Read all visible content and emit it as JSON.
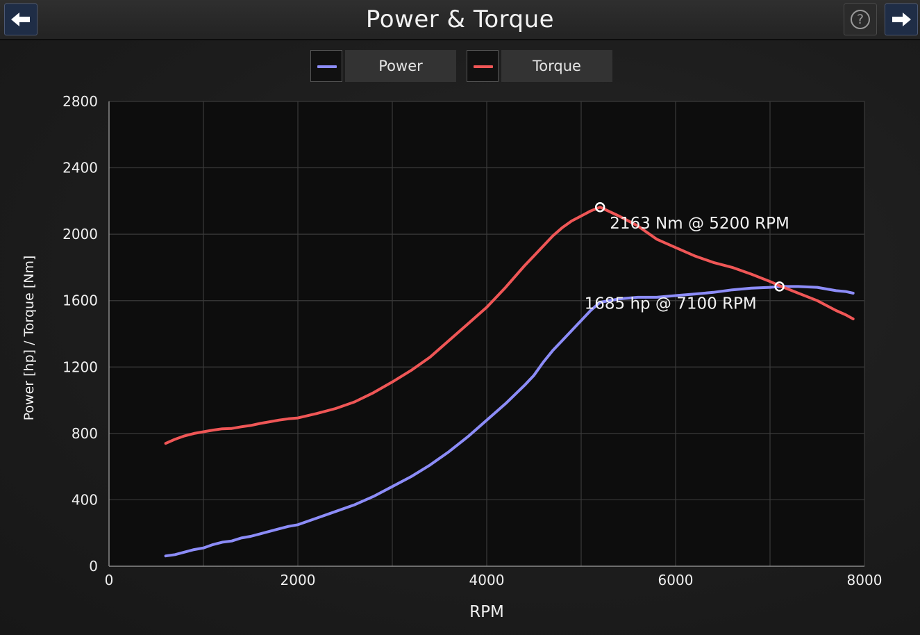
{
  "header": {
    "title": "Power & Torque"
  },
  "legend": [
    {
      "label": "Power",
      "color": "#8c8cf8"
    },
    {
      "label": "Torque",
      "color": "#ef5656"
    }
  ],
  "chart_data": {
    "type": "line",
    "xlabel": "RPM",
    "ylabel": "Power [hp] / Torque [Nm]",
    "xlim": [
      0,
      8000
    ],
    "ylim": [
      0,
      2800
    ],
    "x_ticks": [
      0,
      2000,
      4000,
      6000,
      8000
    ],
    "y_ticks": [
      0,
      400,
      800,
      1200,
      1600,
      2000,
      2400,
      2800
    ],
    "grid": true,
    "legend_position": "top-center",
    "series": [
      {
        "name": "Power",
        "color": "#8c8cf8",
        "x": [
          600,
          700,
          800,
          900,
          1000,
          1100,
          1200,
          1300,
          1400,
          1500,
          1600,
          1700,
          1800,
          1900,
          2000,
          2200,
          2400,
          2600,
          2800,
          3000,
          3200,
          3400,
          3600,
          3800,
          4000,
          4200,
          4400,
          4500,
          4600,
          4700,
          4800,
          4900,
          5000,
          5100,
          5200,
          5400,
          5600,
          5800,
          6000,
          6200,
          6400,
          6600,
          6800,
          7000,
          7100,
          7300,
          7500,
          7600,
          7700,
          7800,
          7880
        ],
        "y": [
          62,
          70,
          85,
          100,
          110,
          130,
          145,
          152,
          170,
          180,
          195,
          210,
          225,
          240,
          250,
          290,
          330,
          370,
          420,
          480,
          540,
          610,
          690,
          780,
          880,
          980,
          1090,
          1150,
          1230,
          1300,
          1360,
          1420,
          1480,
          1540,
          1590,
          1610,
          1620,
          1620,
          1630,
          1640,
          1650,
          1665,
          1675,
          1680,
          1685,
          1685,
          1680,
          1670,
          1660,
          1655,
          1645
        ]
      },
      {
        "name": "Torque",
        "color": "#ef5656",
        "x": [
          600,
          700,
          800,
          900,
          1000,
          1100,
          1200,
          1300,
          1400,
          1500,
          1600,
          1700,
          1800,
          1900,
          2000,
          2200,
          2400,
          2600,
          2800,
          3000,
          3200,
          3400,
          3600,
          3800,
          4000,
          4200,
          4400,
          4500,
          4600,
          4700,
          4800,
          4900,
          5000,
          5100,
          5200,
          5400,
          5600,
          5800,
          6000,
          6200,
          6400,
          6600,
          6800,
          7000,
          7100,
          7300,
          7500,
          7600,
          7700,
          7800,
          7880
        ],
        "y": [
          740,
          765,
          785,
          800,
          810,
          820,
          828,
          830,
          840,
          848,
          860,
          870,
          880,
          888,
          893,
          920,
          950,
          990,
          1045,
          1110,
          1180,
          1260,
          1360,
          1460,
          1560,
          1680,
          1810,
          1870,
          1930,
          1990,
          2040,
          2080,
          2110,
          2140,
          2163,
          2110,
          2050,
          1970,
          1920,
          1870,
          1830,
          1800,
          1760,
          1715,
          1690,
          1645,
          1600,
          1570,
          1540,
          1515,
          1490
        ]
      }
    ],
    "annotations": [
      {
        "x": 5200,
        "y": 2163,
        "text": "2163 Nm @ 5200 RPM",
        "series": "Torque"
      },
      {
        "x": 7100,
        "y": 1685,
        "text": "1685 hp @ 7100 RPM",
        "series": "Power"
      }
    ]
  }
}
